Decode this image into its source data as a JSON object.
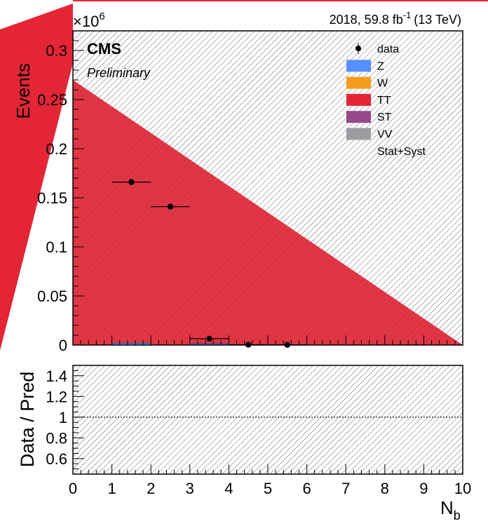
{
  "header": {
    "lumi_label": "2018, 59.8 fb",
    "lumi_exp": "-1",
    "lumi_energy": "(13 TeV)",
    "experiment": "CMS",
    "status": "Preliminary",
    "y_multiplier_base": "×10",
    "y_multiplier_exp": "6"
  },
  "colors": {
    "data": "#000000",
    "Z": "#5790fc",
    "W": "#f89c20",
    "TT": "#e42536",
    "ST": "#964a8b",
    "VV": "#9c9ca1",
    "hatch": "#555555"
  },
  "legend": [
    {
      "key": "data",
      "label": "data",
      "kind": "marker"
    },
    {
      "key": "Z",
      "label": "Z",
      "kind": "box"
    },
    {
      "key": "W",
      "label": "W",
      "kind": "box"
    },
    {
      "key": "TT",
      "label": "TT",
      "kind": "box"
    },
    {
      "key": "ST",
      "label": "ST",
      "kind": "box"
    },
    {
      "key": "VV",
      "label": "VV",
      "kind": "box"
    },
    {
      "key": "unc",
      "label": "Stat+Syst",
      "kind": "none"
    }
  ],
  "chart_data": [
    {
      "type": "bar",
      "panel": "main",
      "xlabel": "N",
      "xlabel_sub": "b",
      "ylabel": "Events",
      "xlim": [
        0,
        10
      ],
      "ylim": [
        0,
        0.32
      ],
      "y_multiplier": "×10^6",
      "x_ticks": [
        0,
        1,
        2,
        3,
        4,
        5,
        6,
        7,
        8,
        9,
        10
      ],
      "y_ticks": [
        "0",
        "0.05",
        "0.1",
        "0.15",
        "0.2",
        "0.25",
        "0.3"
      ],
      "y_tick_values": [
        0,
        0.05,
        0.1,
        0.15,
        0.2,
        0.25,
        0.3
      ],
      "bins": [
        [
          1,
          2
        ],
        [
          2,
          3
        ],
        [
          3,
          4
        ],
        [
          4,
          5
        ],
        [
          5,
          6
        ]
      ],
      "data": {
        "x": [
          1.5,
          2.5,
          3.5,
          4.5,
          5.5
        ],
        "y": [
          0.166,
          0.141,
          0.0065,
          0.0003,
          0.0002
        ]
      },
      "stack": [
        {
          "name": "Z",
          "values": [
            0.002,
            0.0,
            0.0005,
            0.0,
            0.0
          ]
        },
        {
          "name": "W",
          "values": [
            0.0,
            0.0,
            0.0,
            0.0,
            0.0
          ]
        },
        {
          "name": "TT",
          "values": [
            0.0,
            0.0,
            0.0,
            0.0,
            0.0
          ]
        },
        {
          "name": "ST",
          "values": [
            0.0,
            0.0,
            0.0,
            0.0,
            0.0
          ]
        },
        {
          "name": "VV",
          "values": [
            0.0,
            0.0,
            0.0,
            0.0,
            0.0
          ]
        }
      ],
      "tt_band": {
        "x": [
          0,
          10
        ],
        "y": [
          0.27,
          0.0
        ]
      },
      "uncertainty": "Stat+Syst"
    },
    {
      "type": "line",
      "panel": "ratio",
      "ylabel": "Data / Pred",
      "ylim": [
        0.45,
        1.5
      ],
      "y_ticks": [
        "0.6",
        "0.8",
        "1",
        "1.2",
        "1.4"
      ],
      "y_tick_values": [
        0.6,
        0.8,
        1.0,
        1.2,
        1.4
      ],
      "reference": 1.0
    }
  ]
}
